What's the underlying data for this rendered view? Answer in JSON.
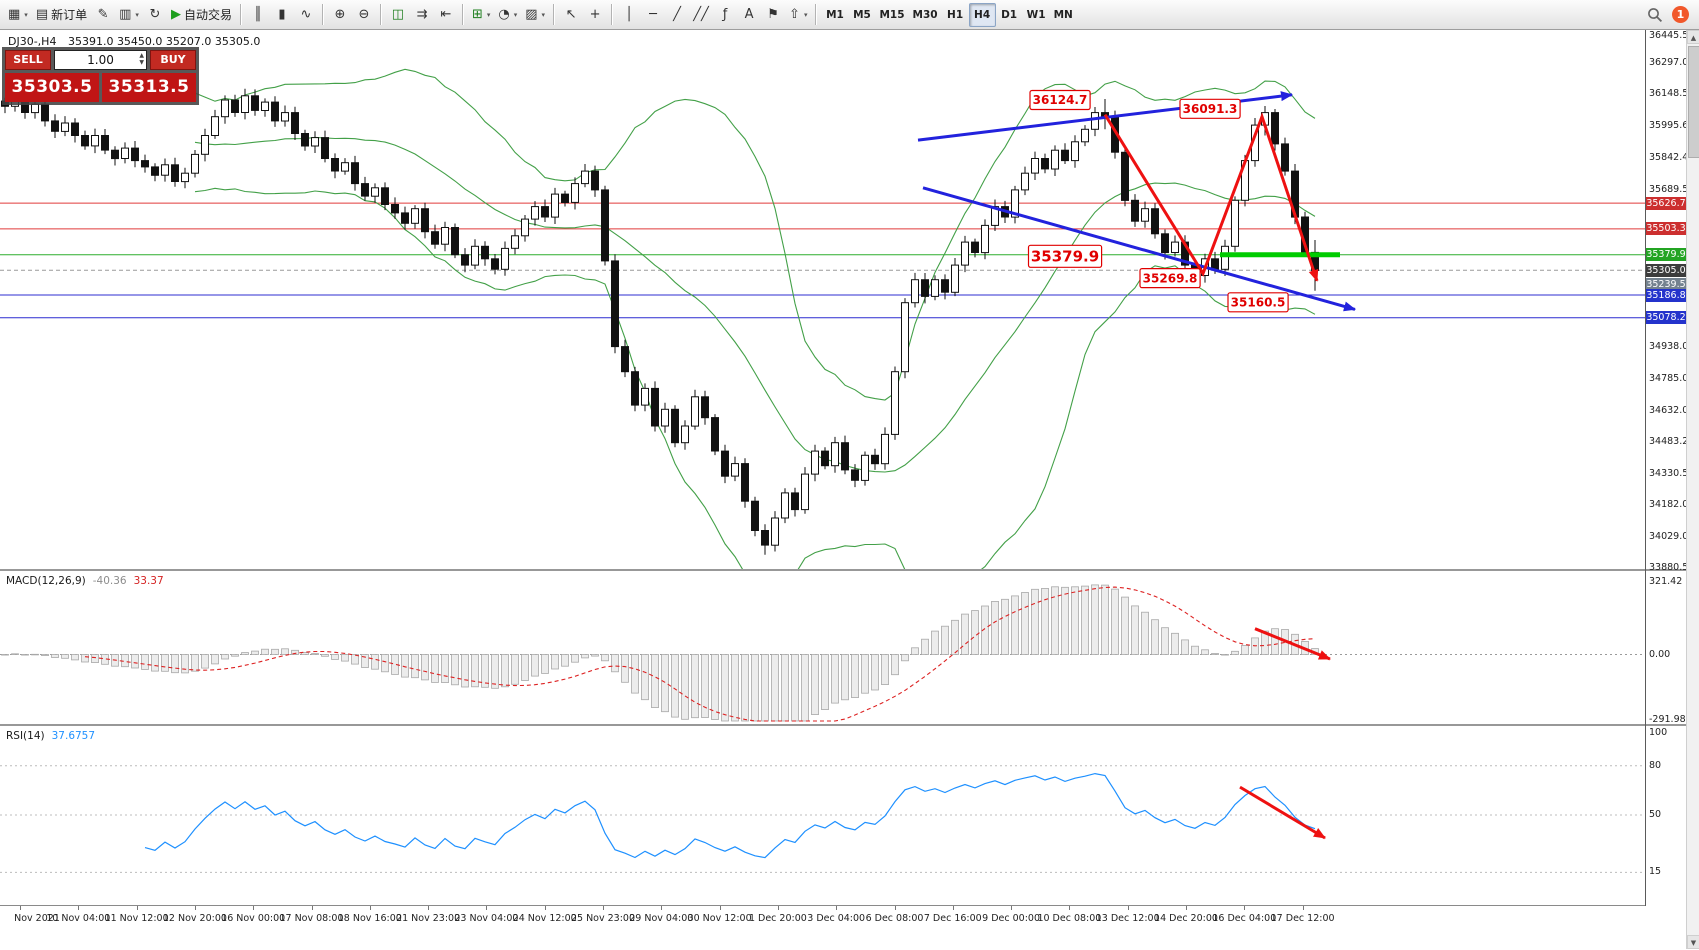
{
  "toolbar": {
    "items": [
      {
        "id": "new-chart",
        "glyph": "▦",
        "dd": true
      },
      {
        "id": "new-order",
        "glyph": "▤",
        "label": "新订单"
      },
      {
        "id": "metaeditor",
        "glyph": "✎"
      },
      {
        "id": "profiles",
        "glyph": "▥",
        "dd": true
      },
      {
        "id": "refresh",
        "glyph": "↻"
      },
      {
        "id": "autotrading",
        "glyph": "▶",
        "label": "自动交易",
        "color": "#1d9e1d"
      },
      {
        "sep": true
      },
      {
        "id": "chart-bars",
        "glyph": "║"
      },
      {
        "id": "chart-candles",
        "glyph": "▮"
      },
      {
        "id": "chart-line",
        "glyph": "∿"
      },
      {
        "sep": true
      },
      {
        "id": "zoom-in",
        "glyph": "⊕"
      },
      {
        "id": "zoom-out",
        "glyph": "⊖"
      },
      {
        "sep": true
      },
      {
        "id": "tile-windows",
        "glyph": "◫",
        "color": "#1d7e1d"
      },
      {
        "id": "auto-scroll",
        "glyph": "⇉"
      },
      {
        "id": "chart-shift",
        "glyph": "⇤"
      },
      {
        "sep": true
      },
      {
        "id": "indicators-list",
        "glyph": "⊞",
        "color": "#1d7e1d",
        "dd": true
      },
      {
        "id": "periods",
        "glyph": "◔",
        "dd": true
      },
      {
        "id": "templates",
        "glyph": "▨",
        "dd": true
      },
      {
        "sep": true
      },
      {
        "id": "cursor",
        "glyph": "↖"
      },
      {
        "id": "crosshair",
        "glyph": "+"
      },
      {
        "sep": true
      },
      {
        "id": "vertical-line",
        "glyph": "│"
      },
      {
        "id": "horizontal-line",
        "glyph": "─"
      },
      {
        "id": "trendline",
        "glyph": "╱"
      },
      {
        "id": "equidistant-channel",
        "glyph": "╱╱"
      },
      {
        "id": "fibonacci",
        "glyph": "ƒ"
      },
      {
        "id": "text",
        "glyph": "A"
      },
      {
        "id": "text-label",
        "glyph": "⚑"
      },
      {
        "id": "arrows-tool",
        "glyph": "⇧",
        "dd": true
      },
      {
        "sep": true
      }
    ],
    "timeframes": [
      "M1",
      "M5",
      "M15",
      "M30",
      "H1",
      "H4",
      "D1",
      "W1",
      "MN"
    ],
    "active_timeframe": "H4",
    "notification_count": "1"
  },
  "symbol_info": {
    "symbol": "DJ30-,H4",
    "values": "35391.0 35450.0 35207.0 35305.0"
  },
  "trade_panel": {
    "sell_label": "SELL",
    "buy_label": "BUY",
    "volume": "1.00",
    "sell_price": "35303.5",
    "buy_price": "35313.5"
  },
  "chart_data": {
    "type": "candlestick",
    "symbol": "DJ30-",
    "timeframe": "H4",
    "price_axis": {
      "min": 33880.5,
      "max": 36445.5,
      "ticks": [
        36445.5,
        36297.0,
        36148.5,
        35995.6,
        35842.4,
        35689.5,
        34938.0,
        34785.0,
        34632.0,
        34483.2,
        34330.5,
        34182.0,
        34029.0,
        33880.5
      ],
      "tags": [
        {
          "text": "35626.7",
          "price": 35626.7,
          "bg": "#cc2f2f"
        },
        {
          "text": "35503.3",
          "price": 35503.3,
          "bg": "#cc2f2f"
        },
        {
          "text": "35379.9",
          "price": 35379.9,
          "bg": "#23a423"
        },
        {
          "text": "35305.0",
          "price": 35305.0,
          "bg": "#3c3c3c"
        },
        {
          "text": "35239.5",
          "price": 35239.5,
          "bg": "#74828f"
        },
        {
          "text": "35186.8",
          "price": 35186.8,
          "bg": "#2433cc"
        },
        {
          "text": "35078.2",
          "price": 35078.2,
          "bg": "#2433cc"
        }
      ]
    },
    "levels": [
      {
        "price": 35626.7,
        "color": "#e03a3a",
        "width": 1
      },
      {
        "price": 35503.3,
        "color": "#e03a3a",
        "width": 1
      },
      {
        "price": 35379.9,
        "color": "#2eae2e",
        "width": 1
      },
      {
        "price": 35305.0,
        "color": "#9a9a9a",
        "width": 1,
        "dash": "4,3"
      },
      {
        "price": 35186.8,
        "color": "#2c2cd0",
        "width": 1
      },
      {
        "price": 35078.2,
        "color": "#2c2cd0",
        "width": 1
      }
    ],
    "closes": [
      36090,
      36130,
      36060,
      36100,
      36020,
      35970,
      36010,
      35950,
      35900,
      35950,
      35880,
      35840,
      35890,
      35830,
      35800,
      35760,
      35810,
      35730,
      35770,
      35860,
      35950,
      36040,
      36120,
      36060,
      36140,
      36070,
      36110,
      36020,
      36060,
      35960,
      35900,
      35940,
      35840,
      35780,
      35820,
      35720,
      35660,
      35700,
      35620,
      35580,
      35530,
      35600,
      35490,
      35430,
      35510,
      35380,
      35330,
      35420,
      35360,
      35310,
      35410,
      35470,
      35550,
      35610,
      35560,
      35670,
      35630,
      35720,
      35780,
      35690,
      35350,
      34940,
      34820,
      34660,
      34740,
      34560,
      34640,
      34480,
      34560,
      34700,
      34600,
      34440,
      34320,
      34380,
      34200,
      34060,
      33990,
      34120,
      34240,
      34160,
      34330,
      34440,
      34370,
      34480,
      34350,
      34300,
      34420,
      34380,
      34520,
      34820,
      35150,
      35260,
      35180,
      35260,
      35200,
      35330,
      35440,
      35390,
      35520,
      35610,
      35560,
      35690,
      35770,
      35840,
      35790,
      35880,
      35830,
      35920,
      35980,
      36060,
      36040,
      35870,
      35640,
      35540,
      35600,
      35480,
      35390,
      35440,
      35330,
      35280,
      35360,
      35310,
      35420,
      35640,
      35830,
      36000,
      36060,
      35910,
      35780,
      35560,
      35391,
      35305
    ],
    "key_candles": {
      "76": [
        34060,
        34090,
        33944,
        33990
      ],
      "110": [
        36060,
        36124.7,
        35980,
        36040
      ],
      "119": [
        35330,
        35360,
        35269.8,
        35280
      ],
      "126": [
        36000,
        36091.3,
        35950,
        36060
      ],
      "131": [
        35391,
        35450,
        35207,
        35305
      ]
    },
    "bollinger": {
      "period": 20,
      "deviation": 2,
      "color": "#43a048"
    },
    "green_segment": {
      "price": 35379.9,
      "bar1": 121.5,
      "bar2": 133.5,
      "color": "#00cc00",
      "width": 5
    },
    "trendlines": [
      {
        "bar1": 91.3,
        "price1": 35928,
        "bar2": 128.7,
        "price2": 36145,
        "color": "#2222dd",
        "width": 3
      },
      {
        "bar1": 91.8,
        "price1": 35700,
        "bar2": 135,
        "price2": 35118,
        "color": "#2222dd",
        "width": 3
      }
    ],
    "red_path": {
      "points": [
        [
          110,
          36050
        ],
        [
          119.8,
          35290
        ],
        [
          125.7,
          36040
        ],
        [
          131.2,
          35255
        ]
      ],
      "color": "#ee1111",
      "width": 3
    },
    "annotations": [
      {
        "text": "36124.7",
        "bar": 105.5,
        "price": 36120,
        "size": 12
      },
      {
        "text": "36091.3",
        "bar": 120.5,
        "price": 36078,
        "size": 12
      },
      {
        "text": "35379.9",
        "bar": 106,
        "price": 35372,
        "size": 15
      },
      {
        "text": "35269.8",
        "bar": 116.5,
        "price": 35268,
        "size": 12
      },
      {
        "text": "35160.5",
        "bar": 125.3,
        "price": 35152,
        "size": 12
      }
    ],
    "macd": {
      "label": "MACD(12,26,9)",
      "value1": "-40.36",
      "value2": "33.37",
      "axis": [
        "321.42",
        "0.00",
        "-291.98"
      ],
      "arrow": {
        "points": [
          [
            125,
            115
          ],
          [
            132.5,
            -20
          ]
        ]
      }
    },
    "rsi": {
      "label": "RSI(14)",
      "value": "37.6757",
      "axis": [
        "100",
        "80",
        "50",
        "15"
      ],
      "levels": [
        80,
        50,
        15
      ],
      "arrow": {
        "points": [
          [
            123.5,
            67
          ],
          [
            132,
            36
          ]
        ]
      }
    },
    "time_axis": [
      "Nov 2021",
      "10 Nov 04:00",
      "11 Nov 12:00",
      "12 Nov 20:00",
      "16 Nov 00:00",
      "17 Nov 08:00",
      "18 Nov 16:00",
      "21 Nov 23:00",
      "23 Nov 04:00",
      "24 Nov 12:00",
      "25 Nov 23:00",
      "29 Nov 04:00",
      "30 Nov 12:00",
      "1 Dec 20:00",
      "3 Dec 04:00",
      "6 Dec 08:00",
      "7 Dec 16:00",
      "9 Dec 00:00",
      "10 Dec 08:00",
      "13 Dec 12:00",
      "14 Dec 20:00",
      "16 Dec 04:00",
      "17 Dec 12:00"
    ]
  }
}
